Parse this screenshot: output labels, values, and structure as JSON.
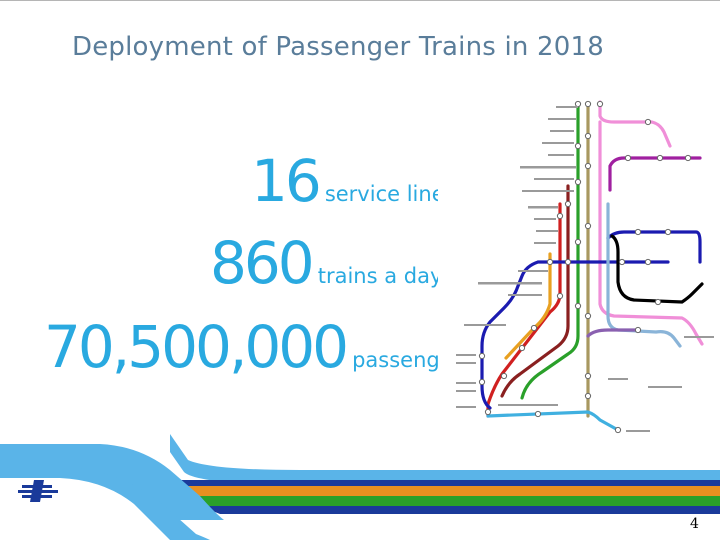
{
  "slide": {
    "title": "Deployment of Passenger Trains in 2018",
    "page_number": "4"
  },
  "stats": [
    {
      "value": "16",
      "label": "service lines"
    },
    {
      "value": "860",
      "label": "trains a day"
    },
    {
      "value": "70,500,000",
      "label": "passengers"
    }
  ],
  "map": {
    "line_colors": [
      "#f08fd8",
      "#a020a0",
      "#1b1bb0",
      "#000000",
      "#8ab4d8",
      "#2aa02a",
      "#d02020",
      "#e8a020",
      "#a89860",
      "#8a60b0",
      "#40b0e0",
      "#c0c030"
    ]
  },
  "colors": {
    "accent": "#29a9e0",
    "title": "#5a7d9a",
    "band_blue": "#1a3a9a",
    "band_green": "#2aa02a",
    "band_orange": "#e89020",
    "band_red": "#d82020",
    "band_light": "#5ab4e8"
  }
}
